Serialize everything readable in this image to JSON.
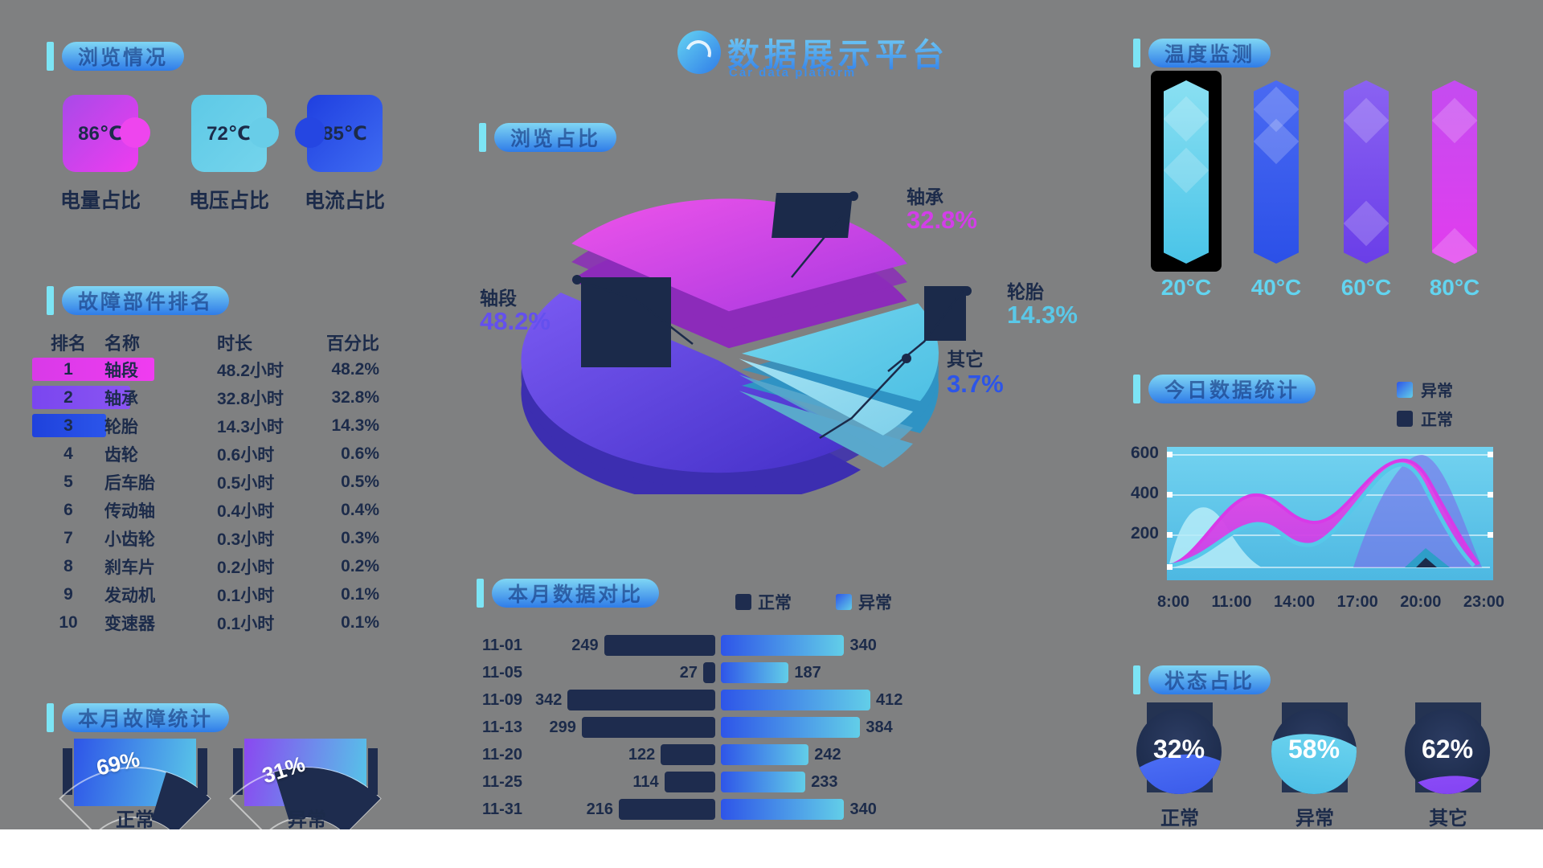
{
  "header": {
    "title": "数据展示平台",
    "subtitle": "Car data platform"
  },
  "sections": {
    "overview": {
      "title": "浏览情况"
    },
    "ranking": {
      "title": "故障部件排名"
    },
    "monthly": {
      "title": "本月故障统计"
    },
    "pie": {
      "title": "浏览占比"
    },
    "compare": {
      "title": "本月数据对比"
    },
    "temperature": {
      "title": "温度监测"
    },
    "today": {
      "title": "今日数据统计"
    },
    "status": {
      "title": "状态占比"
    }
  },
  "overview_cards": [
    {
      "value": "86℃",
      "label": "电量占比"
    },
    {
      "value": "72℃",
      "label": "电压占比"
    },
    {
      "value": "85℃",
      "label": "电流占比"
    }
  ],
  "ranking_table": {
    "headers": [
      "排名",
      "名称",
      "时长",
      "百分比"
    ],
    "rows": [
      [
        "1",
        "轴段",
        "48.2小时",
        "48.2%"
      ],
      [
        "2",
        "轴承",
        "32.8小时",
        "32.8%"
      ],
      [
        "3",
        "轮胎",
        "14.3小时",
        "14.3%"
      ],
      [
        "4",
        "齿轮",
        "0.6小时",
        "0.6%"
      ],
      [
        "5",
        "后车胎",
        "0.5小时",
        "0.5%"
      ],
      [
        "6",
        "传动轴",
        "0.4小时",
        "0.4%"
      ],
      [
        "7",
        "小齿轮",
        "0.3小时",
        "0.3%"
      ],
      [
        "8",
        "刹车片",
        "0.2小时",
        "0.2%"
      ],
      [
        "9",
        "发动机",
        "0.1小时",
        "0.1%"
      ],
      [
        "10",
        "变速器",
        "0.1小时",
        "0.1%"
      ]
    ]
  },
  "gauges": [
    {
      "value": 69,
      "display": "69%",
      "label": "正常"
    },
    {
      "value": 31,
      "display": "31%",
      "label": "异常"
    }
  ],
  "pie": {
    "slices": [
      {
        "name": "轴段",
        "pct": 48.2,
        "display": "48.2%",
        "color": "#6450ee"
      },
      {
        "name": "轴承",
        "pct": 32.8,
        "display": "32.8%",
        "color": "#d23ee8"
      },
      {
        "name": "轮胎",
        "pct": 14.3,
        "display": "14.3%",
        "color": "#5ac8e8"
      },
      {
        "name": "其它",
        "pct": 3.7,
        "display": "3.7%",
        "color": "#2d55e8"
      }
    ]
  },
  "compare": {
    "legend": [
      "正常",
      "异常"
    ],
    "dates": [
      "11-01",
      "11-05",
      "11-09",
      "11-13",
      "11-20",
      "11-25",
      "11-31"
    ],
    "normal": [
      249,
      27,
      342,
      299,
      122,
      114,
      216
    ],
    "abnormal": [
      340,
      187,
      412,
      384,
      242,
      233,
      340
    ]
  },
  "temperature": {
    "labels": [
      "20°C",
      "40°C",
      "60°C",
      "80°C"
    ],
    "selected": "20°C"
  },
  "today": {
    "legend": [
      "异常",
      "正常"
    ],
    "y_ticks": [
      "600",
      "400",
      "200"
    ],
    "x_ticks": [
      "8:00",
      "11:00",
      "14:00",
      "17:00",
      "20:00",
      "23:00"
    ]
  },
  "status": [
    {
      "value": "32%",
      "label": "正常",
      "color": "#3b5ef0"
    },
    {
      "value": "58%",
      "label": "异常",
      "color": "#56c8e8"
    },
    {
      "value": "62%",
      "label": "其它",
      "color": "#7a3bf2"
    }
  ],
  "chart_data": [
    {
      "type": "pie",
      "title": "浏览占比",
      "labels": [
        "轴段",
        "轴承",
        "轮胎",
        "其它"
      ],
      "values": [
        48.2,
        32.8,
        14.3,
        3.7
      ],
      "unit": "%",
      "style": "3d-exploded"
    },
    {
      "type": "table",
      "title": "故障部件排名",
      "columns": [
        "排名",
        "名称",
        "时长",
        "百分比"
      ],
      "hours": [
        48.2,
        32.8,
        14.3,
        0.6,
        0.5,
        0.4,
        0.3,
        0.2,
        0.1,
        0.1
      ]
    },
    {
      "type": "gauge",
      "title": "本月故障统计",
      "labels": [
        "正常",
        "异常"
      ],
      "values": [
        69,
        31
      ],
      "unit": "%"
    },
    {
      "type": "bar",
      "title": "本月数据对比",
      "orientation": "horizontal-butterfly",
      "categories": [
        "11-01",
        "11-05",
        "11-09",
        "11-13",
        "11-20",
        "11-25",
        "11-31"
      ],
      "series": [
        {
          "name": "正常",
          "values": [
            249,
            27,
            342,
            299,
            122,
            114,
            216
          ]
        },
        {
          "name": "异常",
          "values": [
            340,
            187,
            412,
            384,
            242,
            233,
            340
          ]
        }
      ]
    },
    {
      "type": "bar",
      "title": "温度监测",
      "categories": [
        "20°C",
        "40°C",
        "60°C",
        "80°C"
      ],
      "values": [
        100,
        92,
        88,
        90
      ],
      "note": "decorative hexagonal columns, first selected"
    },
    {
      "type": "area",
      "title": "今日数据统计",
      "x": [
        "8:00",
        "11:00",
        "14:00",
        "17:00",
        "20:00",
        "23:00"
      ],
      "ylim": [
        0,
        600
      ],
      "grid": true,
      "legend_position": "top-right",
      "series": [
        {
          "name": "异常",
          "values": [
            20,
            390,
            230,
            570,
            430,
            70
          ]
        },
        {
          "name": "正常",
          "values": [
            30,
            180,
            210,
            130,
            560,
            60
          ]
        }
      ]
    },
    {
      "type": "pie",
      "title": "状态占比",
      "style": "liquid-fill",
      "labels": [
        "正常",
        "异常",
        "其它"
      ],
      "values": [
        32,
        58,
        62
      ],
      "unit": "%"
    }
  ]
}
